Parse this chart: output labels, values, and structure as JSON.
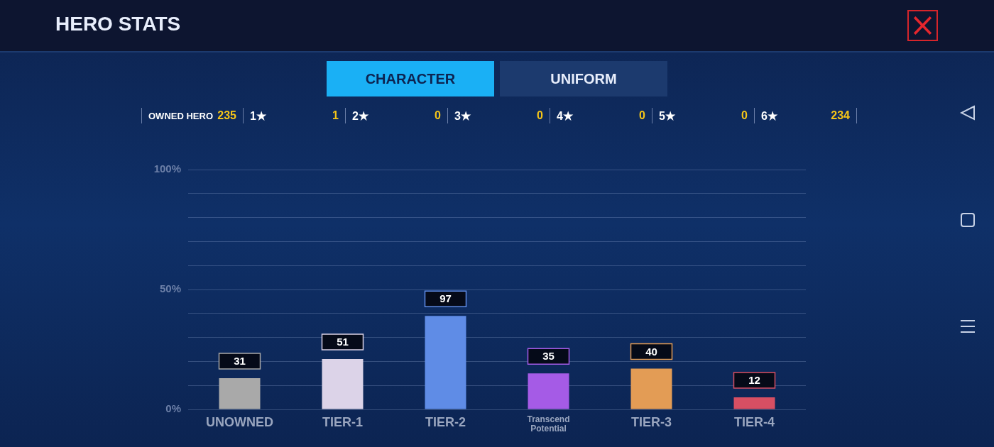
{
  "chart_data": {
    "type": "bar",
    "title": "HERO STATS",
    "categories": [
      "UNOWNED",
      "TIER-1",
      "TIER-2",
      "Transcend Potential",
      "TIER-3",
      "TIER-4"
    ],
    "values": [
      13,
      21,
      39,
      15,
      17,
      5
    ],
    "colors": [
      "#a9a9a9",
      "#dcd3e8",
      "#5f8ce6",
      "#a55be6",
      "#e39c55",
      "#d64f63"
    ],
    "ylim": [
      0,
      100
    ],
    "yticks": [
      {
        "value": 0,
        "label": "0%"
      },
      {
        "value": 10,
        "label": null
      },
      {
        "value": 20,
        "label": null
      },
      {
        "value": 30,
        "label": null
      },
      {
        "value": 40,
        "label": null
      },
      {
        "value": 50,
        "label": "50%"
      },
      {
        "value": 60,
        "label": null
      },
      {
        "value": 70,
        "label": null
      },
      {
        "value": 80,
        "label": null
      },
      {
        "value": 90,
        "label": null
      },
      {
        "value": 100,
        "label": "100%"
      }
    ],
    "grid": "y",
    "annotations": [
      "CHARACTER",
      "UNIFORM",
      "OWNED HERO",
      "235",
      "1★",
      "1",
      "2★",
      "0",
      "3★",
      "0",
      "4★",
      "0",
      "5★",
      "0",
      "6★",
      "234",
      {
        "text": "31",
        "x": "UNOWNED",
        "y": 13
      },
      {
        "text": "51",
        "x": "TIER-1",
        "y": 21
      },
      {
        "text": "97",
        "x": "TIER-2",
        "y": 39
      },
      {
        "text": "35",
        "x": "Transcend Potential",
        "y": 15
      },
      {
        "text": "40",
        "x": "TIER-3",
        "y": 17
      },
      {
        "text": "12",
        "x": "TIER-4",
        "y": 5
      }
    ]
  }
}
